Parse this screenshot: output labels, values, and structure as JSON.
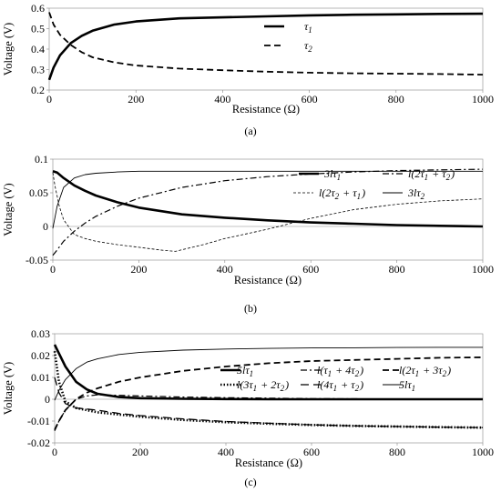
{
  "chart_data": [
    {
      "type": "line",
      "caption": "(a)",
      "xlabel": "Resistance (Ω)",
      "ylabel": "Voltage (V)",
      "xlim": [
        0,
        1000
      ],
      "ylim": [
        0.2,
        0.6
      ],
      "xticks": [
        "0",
        "200",
        "400",
        "600",
        "800",
        "1000"
      ],
      "yticks": [
        "0.2",
        "0.3",
        "0.4",
        "0.5",
        "0.6"
      ],
      "legend_position": "right-middle",
      "series": [
        {
          "name": "τ1",
          "style": "thick-solid",
          "x": [
            0,
            10,
            25,
            50,
            75,
            100,
            150,
            200,
            300,
            400,
            500,
            600,
            700,
            800,
            900,
            1000
          ],
          "y": [
            0.25,
            0.31,
            0.37,
            0.43,
            0.465,
            0.49,
            0.52,
            0.535,
            0.55,
            0.555,
            0.56,
            0.565,
            0.568,
            0.57,
            0.572,
            0.573
          ]
        },
        {
          "name": "τ2",
          "style": "dashed",
          "x": [
            0,
            10,
            25,
            50,
            75,
            100,
            150,
            200,
            300,
            400,
            500,
            600,
            700,
            800,
            900,
            1000
          ],
          "y": [
            0.58,
            0.52,
            0.47,
            0.42,
            0.385,
            0.36,
            0.335,
            0.32,
            0.305,
            0.297,
            0.29,
            0.285,
            0.282,
            0.28,
            0.278,
            0.275
          ]
        }
      ]
    },
    {
      "type": "line",
      "caption": "(b)",
      "xlabel": "Resistance (Ω)",
      "ylabel": "Voltage (V)",
      "xlim": [
        0,
        1000
      ],
      "ylim": [
        -0.05,
        0.1
      ],
      "xticks": [
        "0",
        "200",
        "400",
        "600",
        "800",
        "1000"
      ],
      "yticks": [
        "-0.05",
        "0",
        "0.05",
        "0.1"
      ],
      "legend_position": "right-top",
      "series": [
        {
          "name": "3lτ1",
          "style": "thick-solid",
          "x": [
            0,
            10,
            25,
            50,
            75,
            100,
            150,
            200,
            300,
            400,
            500,
            600,
            700,
            800,
            900,
            1000
          ],
          "y": [
            0.082,
            0.08,
            0.072,
            0.061,
            0.053,
            0.046,
            0.036,
            0.028,
            0.018,
            0.013,
            0.009,
            0.006,
            0.004,
            0.002,
            0.001,
            0.0
          ]
        },
        {
          "name": "l(2τ1 + τ2)",
          "style": "dash-dot",
          "x": [
            0,
            10,
            25,
            50,
            75,
            100,
            150,
            200,
            300,
            400,
            500,
            600,
            700,
            800,
            900,
            1000
          ],
          "y": [
            -0.043,
            -0.035,
            -0.022,
            -0.007,
            0.005,
            0.015,
            0.03,
            0.042,
            0.058,
            0.068,
            0.074,
            0.078,
            0.081,
            0.083,
            0.084,
            0.085
          ]
        },
        {
          "name": "l(2τ2 + τ1)",
          "style": "fine-dash",
          "x": [
            0,
            5,
            15,
            25,
            50,
            75,
            100,
            150,
            200,
            250,
            285,
            350,
            400,
            500,
            600,
            700,
            800,
            900,
            1000
          ],
          "y": [
            0.08,
            0.06,
            0.03,
            0.01,
            -0.012,
            -0.018,
            -0.022,
            -0.027,
            -0.031,
            -0.035,
            -0.037,
            -0.027,
            -0.018,
            -0.004,
            0.012,
            0.025,
            0.033,
            0.038,
            0.041
          ]
        },
        {
          "name": "3lτ2",
          "style": "thin-solid",
          "x": [
            0,
            10,
            25,
            50,
            75,
            100,
            150,
            200,
            300,
            400,
            500,
            600,
            700,
            800,
            900,
            1000
          ],
          "y": [
            -0.003,
            0.03,
            0.058,
            0.072,
            0.077,
            0.079,
            0.081,
            0.082,
            0.082,
            0.082,
            0.082,
            0.082,
            0.082,
            0.082,
            0.082,
            0.082
          ]
        }
      ]
    },
    {
      "type": "line",
      "caption": "(c)",
      "xlabel": "Resistance (Ω)",
      "ylabel": "Voltage (V)",
      "xlim": [
        0,
        1000
      ],
      "ylim": [
        -0.02,
        0.03
      ],
      "xticks": [
        "0",
        "200",
        "400",
        "600",
        "800",
        "1000"
      ],
      "yticks": [
        "-0.02",
        "-0.01",
        "0",
        "0.01",
        "0.02",
        "0.03"
      ],
      "legend_position": "right-middle",
      "series": [
        {
          "name": "5lτ1",
          "style": "thick-solid",
          "x": [
            0,
            10,
            25,
            50,
            75,
            100,
            150,
            200,
            300,
            400,
            500,
            600,
            700,
            800,
            900,
            1000
          ],
          "y": [
            0.025,
            0.021,
            0.015,
            0.008,
            0.0045,
            0.0025,
            0.001,
            0.0005,
            0.0002,
            0.0001,
            0.0,
            0.0,
            0.0,
            0.0,
            0.0,
            0.0
          ]
        },
        {
          "name": "l(τ1 + 4τ2)",
          "style": "dash-dot",
          "x": [
            0,
            10,
            25,
            50,
            75,
            100,
            150,
            200,
            300,
            400,
            500,
            600,
            700,
            800,
            900,
            1000
          ],
          "y": [
            -0.0145,
            -0.01,
            -0.005,
            0.0,
            0.0015,
            0.002,
            0.0018,
            0.0015,
            0.001,
            0.0007,
            0.0005,
            0.0003,
            0.0002,
            0.0001,
            0.0,
            0.0
          ]
        },
        {
          "name": "l(2τ1 + 3τ2)",
          "style": "dashed",
          "x": [
            0,
            10,
            25,
            50,
            75,
            100,
            150,
            200,
            300,
            400,
            500,
            600,
            700,
            800,
            900,
            1000
          ],
          "y": [
            -0.014,
            -0.01,
            -0.005,
            0.0,
            0.003,
            0.005,
            0.008,
            0.01,
            0.013,
            0.015,
            0.0165,
            0.0175,
            0.018,
            0.0185,
            0.019,
            0.0192
          ]
        },
        {
          "name": "l(3τ1 + 2τ2)",
          "style": "dotted",
          "x": [
            0,
            10,
            25,
            50,
            75,
            100,
            150,
            200,
            300,
            400,
            500,
            600,
            700,
            800,
            900,
            1000
          ],
          "y": [
            0.022,
            0.008,
            -0.001,
            -0.004,
            -0.005,
            -0.006,
            -0.007,
            -0.008,
            -0.0095,
            -0.0105,
            -0.0112,
            -0.0118,
            -0.0122,
            -0.0125,
            -0.0128,
            -0.013
          ]
        },
        {
          "name": "l(4τ1 + τ2)",
          "style": "long-dash",
          "x": [
            0,
            10,
            25,
            50,
            75,
            100,
            150,
            200,
            300,
            400,
            500,
            600,
            700,
            800,
            900,
            1000
          ],
          "y": [
            0.01,
            0.003,
            -0.002,
            -0.004,
            -0.0045,
            -0.005,
            -0.0065,
            -0.0075,
            -0.009,
            -0.0102,
            -0.011,
            -0.0117,
            -0.0122,
            -0.0125,
            -0.0128,
            -0.013
          ]
        },
        {
          "name": "5lτ1",
          "style": "thin-solid",
          "x": [
            0,
            10,
            25,
            50,
            75,
            100,
            150,
            200,
            300,
            400,
            500,
            600,
            700,
            800,
            900,
            1000
          ],
          "y": [
            -0.0005,
            0.004,
            0.009,
            0.014,
            0.017,
            0.0185,
            0.0205,
            0.0215,
            0.0225,
            0.023,
            0.0233,
            0.0235,
            0.0236,
            0.0237,
            0.0238,
            0.0238
          ]
        }
      ]
    }
  ]
}
